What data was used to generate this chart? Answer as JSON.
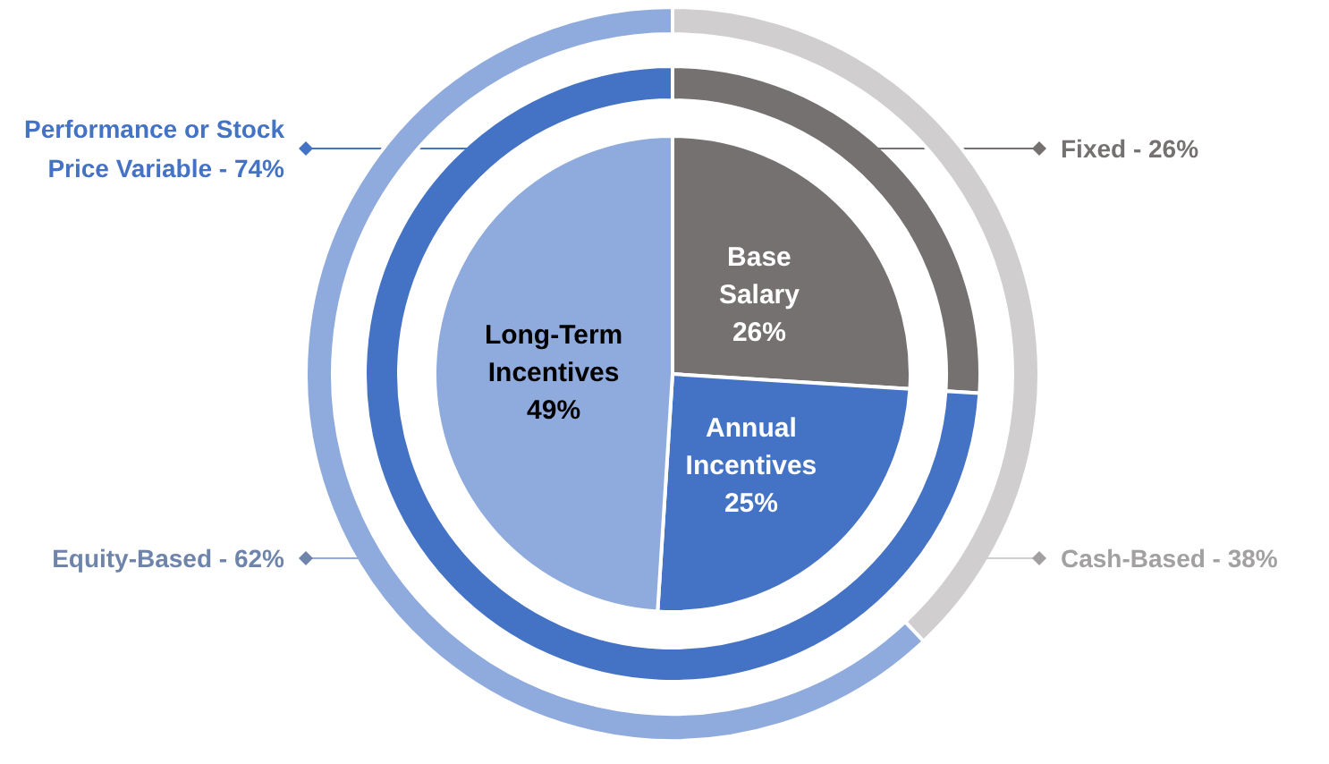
{
  "chart_data": [
    {
      "type": "pie",
      "categories": [
        "Base Salary",
        "Annual Incentives",
        "Long-Term Incentives"
      ],
      "values": [
        26,
        25,
        49
      ],
      "colors": [
        "#767171",
        "#4472c4",
        "#8faadc"
      ],
      "value_labels": [
        "26%",
        "25%",
        "49%"
      ]
    },
    {
      "type": "donut",
      "categories": [
        "Fixed",
        "Performance or Stock Price Variable"
      ],
      "values": [
        26,
        74
      ],
      "colors": [
        "#767171",
        "#4472c4"
      ],
      "value_labels": [
        "26%",
        "74%"
      ]
    },
    {
      "type": "donut",
      "categories": [
        "Cash-Based",
        "Equity-Based"
      ],
      "values": [
        38,
        62
      ],
      "colors": [
        "#d0cece",
        "#8faadc"
      ],
      "value_labels": [
        "38%",
        "62%"
      ]
    }
  ]
}
